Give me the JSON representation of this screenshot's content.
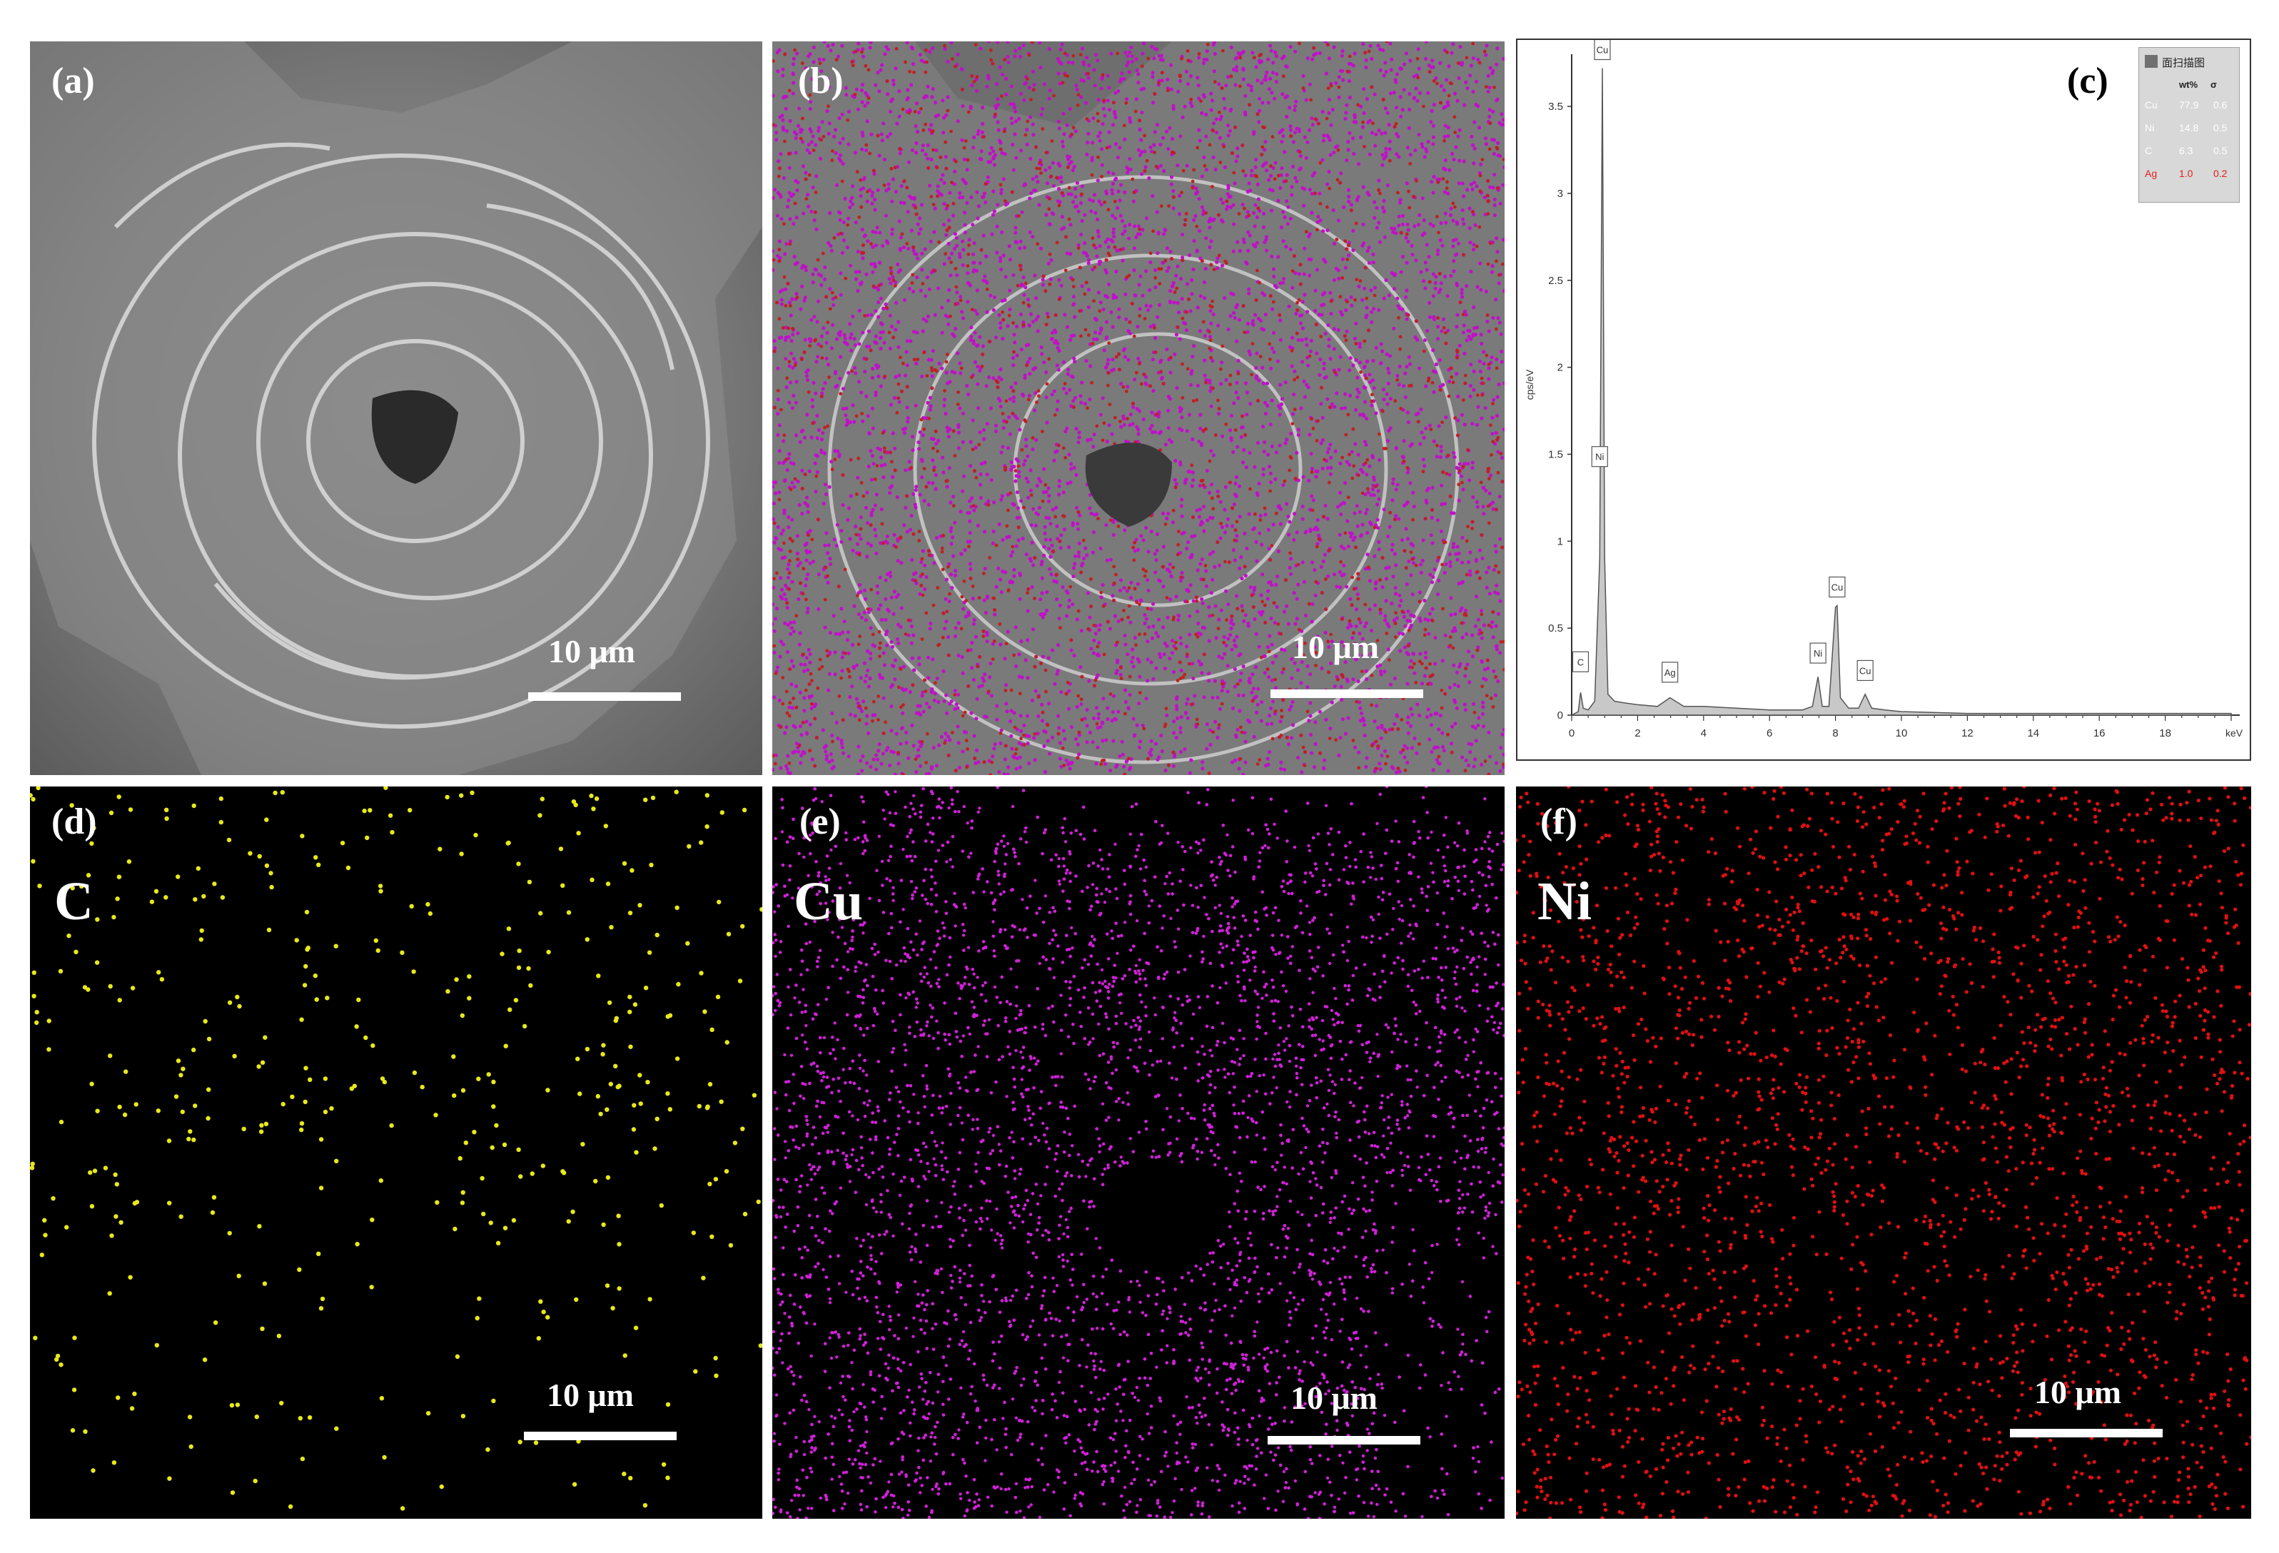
{
  "figure": {
    "panels": [
      {
        "id": "a",
        "label": "(a)",
        "scale_bar": "10 μm"
      },
      {
        "id": "b",
        "label": "(b)",
        "scale_bar": "10 μm"
      },
      {
        "id": "c",
        "label": "(c)"
      },
      {
        "id": "d",
        "label": "(d)",
        "element": "C",
        "scale_bar": "10 μm",
        "dot_color": "#e8e81a"
      },
      {
        "id": "e",
        "label": "(e)",
        "element": "Cu",
        "scale_bar": "10 μm",
        "dot_color": "#d020d8"
      },
      {
        "id": "f",
        "label": "(f)",
        "element": "Ni",
        "scale_bar": "10 μm",
        "dot_color": "#e01010"
      }
    ]
  },
  "chart_data": {
    "type": "line",
    "xlabel": "keV",
    "ylabel": "cps/eV",
    "xlim": [
      0,
      20
    ],
    "ylim": [
      0,
      3.8
    ],
    "x_ticks": [
      "0",
      "2",
      "4",
      "6",
      "8",
      "10",
      "12",
      "14",
      "16",
      "18"
    ],
    "y_ticks": [
      "0",
      "0.5",
      "1",
      "1.5",
      "2",
      "2.5",
      "3",
      "3.5"
    ],
    "series": [
      {
        "x": [
          0,
          0.2,
          0.27,
          0.35,
          0.5,
          0.7,
          0.85,
          0.93,
          1.0,
          1.1,
          1.3,
          1.6,
          2.0,
          2.6,
          2.98,
          3.4,
          4,
          5,
          6,
          7,
          7.3,
          7.47,
          7.6,
          7.8,
          8.0,
          8.05,
          8.15,
          8.4,
          8.7,
          8.9,
          9.1,
          9.5,
          10,
          12,
          14,
          16,
          18,
          20
        ],
        "y": [
          0,
          0.02,
          0.13,
          0.04,
          0.03,
          0.08,
          0.9,
          3.72,
          0.9,
          0.12,
          0.08,
          0.07,
          0.06,
          0.05,
          0.1,
          0.05,
          0.05,
          0.04,
          0.03,
          0.03,
          0.05,
          0.22,
          0.05,
          0.05,
          0.62,
          0.63,
          0.1,
          0.04,
          0.04,
          0.12,
          0.04,
          0.03,
          0.02,
          0.01,
          0.01,
          0.01,
          0.01,
          0.01
        ]
      }
    ],
    "peak_labels": [
      {
        "label": "Cu",
        "x": 0.93,
        "y": 3.72
      },
      {
        "label": "Ni",
        "x": 0.85,
        "y": 1.38
      },
      {
        "label": "C",
        "x": 0.27,
        "y": 0.2
      },
      {
        "label": "Ag",
        "x": 2.98,
        "y": 0.14
      },
      {
        "label": "Ni",
        "x": 7.47,
        "y": 0.25
      },
      {
        "label": "Cu",
        "x": 8.05,
        "y": 0.63
      },
      {
        "label": "Cu",
        "x": 8.9,
        "y": 0.15
      }
    ],
    "legend": {
      "title": "面扫描图",
      "header": [
        "wt%",
        "σ"
      ],
      "rows": [
        {
          "el": "Cu",
          "wt": "77.9",
          "sigma": "0.6",
          "color": "#ffffff"
        },
        {
          "el": "Ni",
          "wt": "14.8",
          "sigma": "0.5",
          "color": "#ffffff"
        },
        {
          "el": "C",
          "wt": "6.3",
          "sigma": "0.5",
          "color": "#ffffff"
        },
        {
          "el": "Ag",
          "wt": "1.0",
          "sigma": "0.2",
          "color": "#e02020"
        }
      ],
      "placement": "top-right"
    }
  }
}
